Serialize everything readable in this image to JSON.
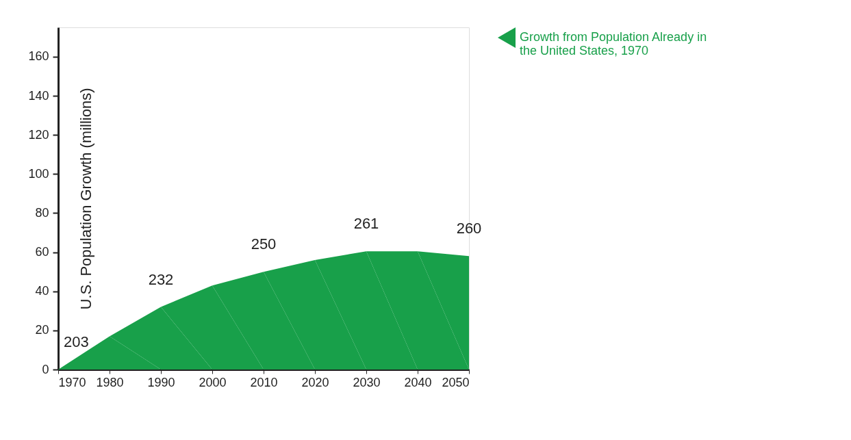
{
  "chart_data": {
    "type": "area",
    "ylabel": "U.S. Population Growth (millions)",
    "x": [
      1970,
      1980,
      1990,
      2000,
      2010,
      2020,
      2030,
      2040,
      2050
    ],
    "series": [
      {
        "name": "Growth from Population Already in the United States, 1970",
        "color": "#18a04a",
        "values": [
          0,
          17,
          32,
          43,
          50,
          56,
          60.5,
          60.5,
          58
        ]
      }
    ],
    "xlim": [
      1970,
      2050
    ],
    "xticks": [
      1970,
      1980,
      1990,
      2000,
      2010,
      2020,
      2030,
      2040,
      2050
    ],
    "ylim": [
      0,
      175
    ],
    "yticks": [
      0,
      20,
      40,
      60,
      80,
      100,
      120,
      140,
      160
    ],
    "annotations": [
      {
        "text": "203",
        "x": 1970,
        "y": 0
      },
      {
        "text": "232",
        "x": 1990,
        "y": 32
      },
      {
        "text": "250",
        "x": 2010,
        "y": 50
      },
      {
        "text": "261",
        "x": 2030,
        "y": 60.5
      },
      {
        "text": "260",
        "x": 2050,
        "y": 58
      }
    ],
    "legend": "right",
    "grid": false
  }
}
